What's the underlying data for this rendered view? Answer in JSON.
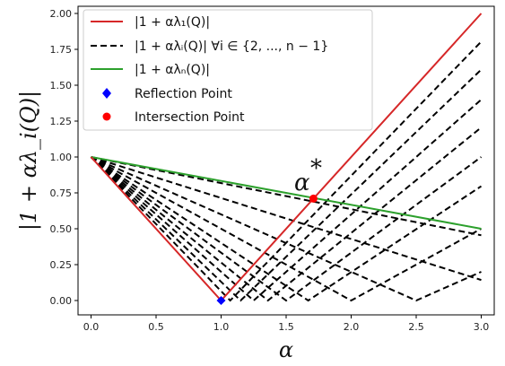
{
  "chart_data": {
    "type": "line",
    "xlabel": "α",
    "ylabel": "|1 + αλ_i(Q)|",
    "xlim": [
      -0.1,
      3.1
    ],
    "ylim": [
      -0.1,
      2.05
    ],
    "xticks": [
      0.0,
      0.5,
      1.0,
      1.5,
      2.0,
      2.5,
      3.0
    ],
    "xtick_labels": [
      "0.0",
      "0.5",
      "1.0",
      "1.5",
      "2.0",
      "2.5",
      "3.0"
    ],
    "yticks": [
      0.0,
      0.25,
      0.5,
      0.75,
      1.0,
      1.25,
      1.5,
      1.75,
      2.0
    ],
    "ytick_labels": [
      "0.00",
      "0.25",
      "0.50",
      "0.75",
      "1.00",
      "1.25",
      "1.50",
      "1.75",
      "2.00"
    ],
    "grid": false,
    "legend_placement": "top-left",
    "red_series": {
      "name": "|1 + αλ₁(Q)|",
      "color": "#d62728",
      "x": [
        0,
        1,
        3
      ],
      "y": [
        1,
        0,
        2
      ]
    },
    "green_series": {
      "name": "|1 + αλₙ(Q)|",
      "color": "#2ca02c",
      "x": [
        0,
        3
      ],
      "y": [
        1,
        0.5
      ]
    },
    "dashed_series": {
      "name": "|1 + αλᵢ(Q)| ∀i ∈ {2, ..., n − 1}",
      "color": "#000000",
      "roots": [
        1.07,
        1.15,
        1.25,
        1.36,
        1.5,
        1.67,
        2.0,
        2.5,
        3.5,
        5.5
      ]
    },
    "reflection_point": {
      "name": "Reflection Point",
      "color": "#0000ff",
      "x": 1.0,
      "y": 0.0
    },
    "intersection_point": {
      "name": "Intersection Point",
      "color": "#ff0000",
      "x": 1.71,
      "y": 0.71
    },
    "annotation": {
      "text": "α",
      "sup": "*",
      "x": 1.71,
      "y": 0.71
    }
  }
}
